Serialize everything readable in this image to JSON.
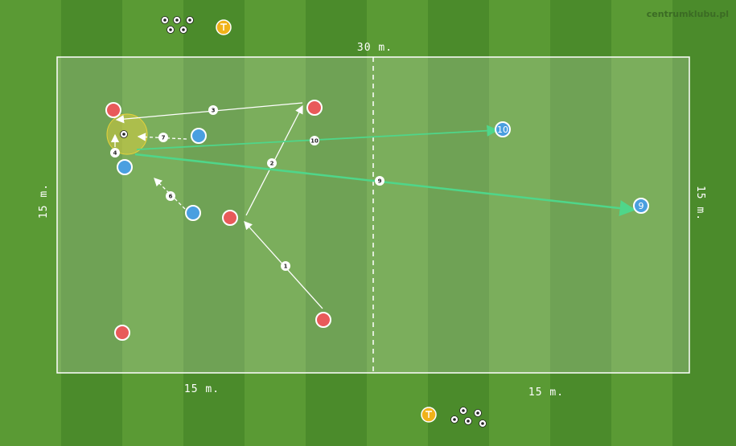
{
  "branding": {
    "watermark": "centrumklubu.pl"
  },
  "dimensions": {
    "top": "30 m.",
    "left": "15 m.",
    "right": "15 m.",
    "bottom_left": "15 m.",
    "bottom_right": "15 m."
  },
  "colors": {
    "team_red": "#e85a5a",
    "team_blue": "#4a9fe0",
    "pass_arrow": "#ffffff",
    "long_pass": "#4fd68a",
    "highlight": "#e8d23a",
    "coach_badge": "#f0b21a"
  },
  "steps": [
    "1",
    "2",
    "3",
    "4",
    "6",
    "7",
    "9",
    "10"
  ],
  "player_labels": {
    "p10": "10",
    "p9": "9"
  },
  "coach_badge_icon": "coach-icon",
  "ball_icon": "soccer-ball-icon"
}
